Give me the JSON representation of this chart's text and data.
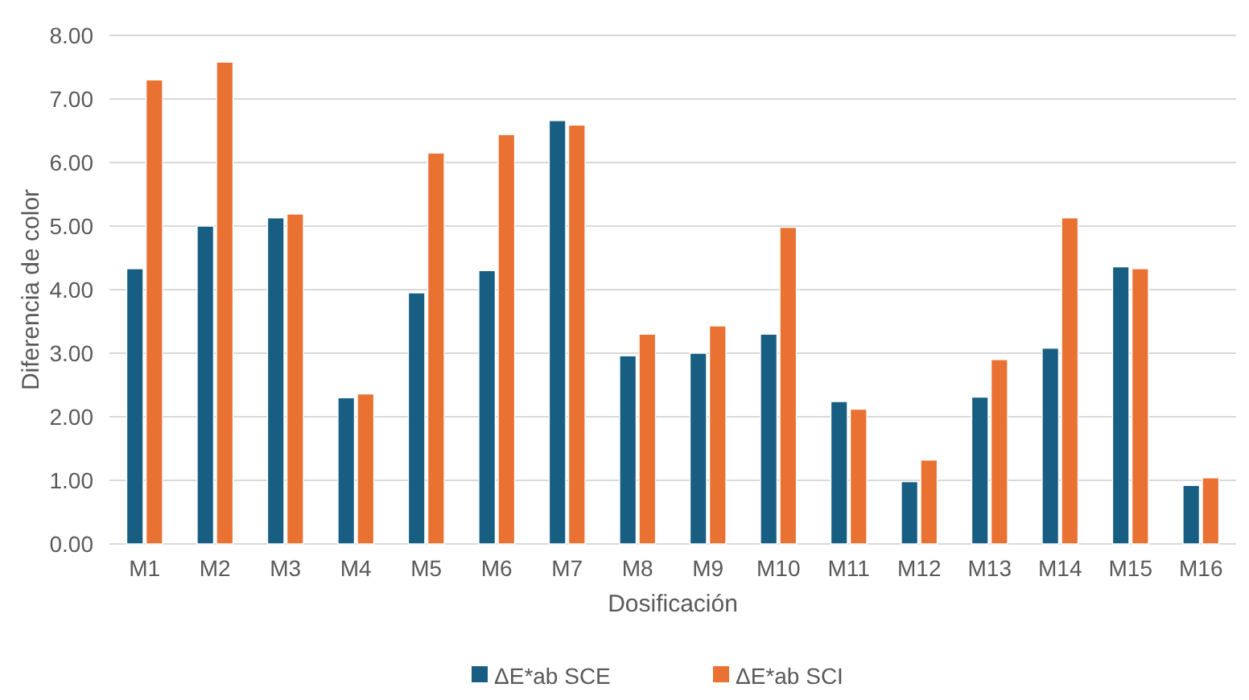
{
  "chart_data": {
    "type": "bar",
    "xlabel": "Dosificación",
    "ylabel": "Diferencia de color",
    "categories": [
      "M1",
      "M2",
      "M3",
      "M4",
      "M5",
      "M6",
      "M7",
      "M8",
      "M9",
      "M10",
      "M11",
      "M12",
      "M13",
      "M14",
      "M15",
      "M16"
    ],
    "series": [
      {
        "name": "ΔE*ab SCE",
        "color": "#175e82",
        "values": [
          4.33,
          5.0,
          5.13,
          2.3,
          3.95,
          4.3,
          6.66,
          2.96,
          3.0,
          3.3,
          2.24,
          0.98,
          2.31,
          3.08,
          4.36,
          0.92
        ]
      },
      {
        "name": "ΔE*ab SCI",
        "color": "#e97132",
        "values": [
          7.3,
          7.58,
          5.19,
          2.36,
          6.15,
          6.44,
          6.59,
          3.3,
          3.43,
          4.98,
          2.12,
          1.32,
          2.9,
          5.13,
          4.33,
          1.04
        ]
      }
    ],
    "ylim": [
      0,
      8
    ],
    "yticks": [
      {
        "value": 0,
        "label": "0.00"
      },
      {
        "value": 1,
        "label": "1.00"
      },
      {
        "value": 2,
        "label": "2.00"
      },
      {
        "value": 3,
        "label": "3.00"
      },
      {
        "value": 4,
        "label": "4.00"
      },
      {
        "value": 5,
        "label": "5.00"
      },
      {
        "value": 6,
        "label": "6.00"
      },
      {
        "value": 7,
        "label": "7.00"
      },
      {
        "value": 8,
        "label": "8.00"
      }
    ],
    "grid": "y",
    "legend": "bottom"
  }
}
